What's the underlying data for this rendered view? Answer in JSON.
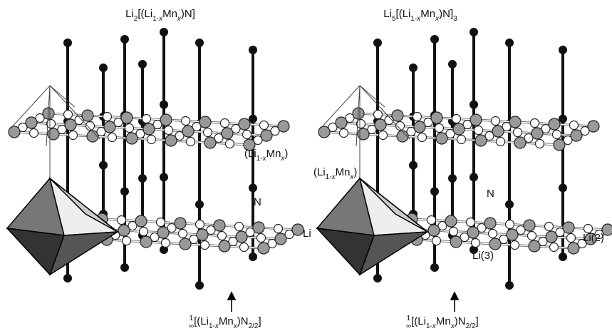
{
  "left": {
    "title": [
      "Li",
      "2",
      "[(Li",
      "1-",
      "x",
      "Mn",
      "x",
      ")N]"
    ],
    "label_chain": [
      "(Li",
      "1-",
      "x",
      "Mn",
      "x",
      ")"
    ],
    "label_n": "N",
    "label_li": "Li",
    "caption": [
      "1",
      "∞",
      "[(Li",
      "1-",
      "x",
      "Mn",
      "x",
      ")N",
      "2/2",
      "]"
    ]
  },
  "right": {
    "title": [
      "Li",
      "5",
      "[(Li",
      "1-",
      "x",
      "Mn",
      "x",
      ")N]",
      "3"
    ],
    "label_chain": [
      "(Li",
      "1-",
      "x",
      "Mn",
      "x",
      ")"
    ],
    "label_n": "N",
    "label_li3": "Li(3)",
    "label_li2": "Li(2)",
    "caption": [
      "1",
      "∞",
      "[(Li",
      "1-",
      "x",
      "Mn",
      "x",
      ")N",
      "2/2",
      "]"
    ]
  }
}
